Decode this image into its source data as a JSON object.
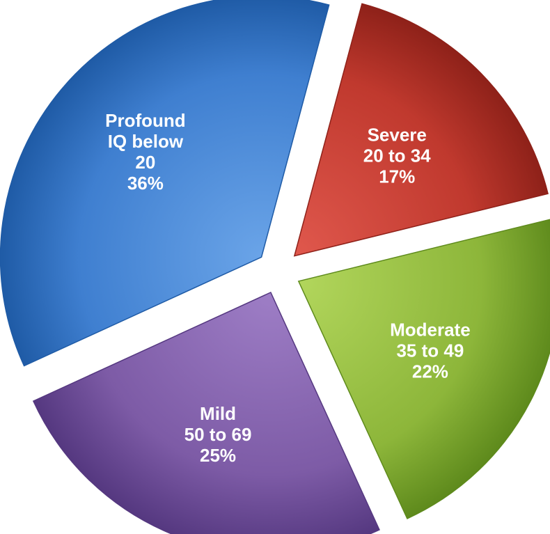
{
  "chart_data": {
    "type": "pie",
    "exploded": true,
    "slices": [
      {
        "name": "Severe",
        "range": "20 to 34",
        "percent_label": "17%",
        "value": 17,
        "color": "#C0392E",
        "color_light": "#E0584D",
        "color_dark": "#8E2119"
      },
      {
        "name": "Moderate",
        "range": "35 to 49",
        "percent_label": "22%",
        "value": 22,
        "color": "#8DB63A",
        "color_light": "#B2D65C",
        "color_dark": "#5E8A1C"
      },
      {
        "name": "Mild",
        "range": "50 to 69",
        "percent_label": "25%",
        "value": 25,
        "color": "#7D5BA6",
        "color_light": "#9E7EC6",
        "color_dark": "#553880"
      },
      {
        "name": "Profound",
        "name_line2": "IQ below",
        "range": "20",
        "percent_label": "36%",
        "value": 36,
        "color": "#3F7FD0",
        "color_light": "#6AA4E8",
        "color_dark": "#1F5BA6"
      }
    ]
  }
}
